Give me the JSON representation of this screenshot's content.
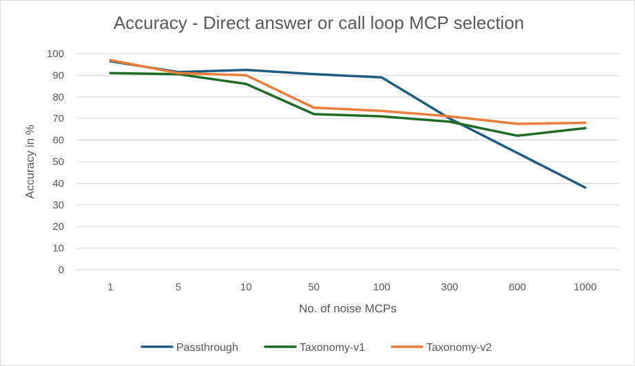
{
  "chart_data": {
    "type": "line",
    "title": "Accuracy - Direct answer or call loop MCP selection",
    "xlabel": "No. of noise MCPs",
    "ylabel": "Accuracy in %",
    "categories": [
      "1",
      "5",
      "10",
      "50",
      "100",
      "300",
      "600",
      "1000"
    ],
    "yticks": [
      "0",
      "10",
      "20",
      "30",
      "40",
      "50",
      "60",
      "70",
      "80",
      "90",
      "100"
    ],
    "ylim": [
      0,
      100
    ],
    "grid": true,
    "legend_position": "bottom",
    "series": [
      {
        "name": "Passthrough",
        "color": "#1f5c82",
        "values": [
          96.5,
          91.5,
          92.5,
          90.5,
          89,
          70,
          54,
          38
        ]
      },
      {
        "name": "Taxonomy-v1",
        "color": "#1e6b24",
        "values": [
          91,
          90.5,
          86,
          72,
          71,
          68.5,
          62,
          65.5
        ]
      },
      {
        "name": "Taxonomy-v2",
        "color": "#ee7d3a",
        "values": [
          97,
          91,
          90,
          75,
          73.5,
          71,
          67.5,
          68
        ]
      }
    ]
  }
}
